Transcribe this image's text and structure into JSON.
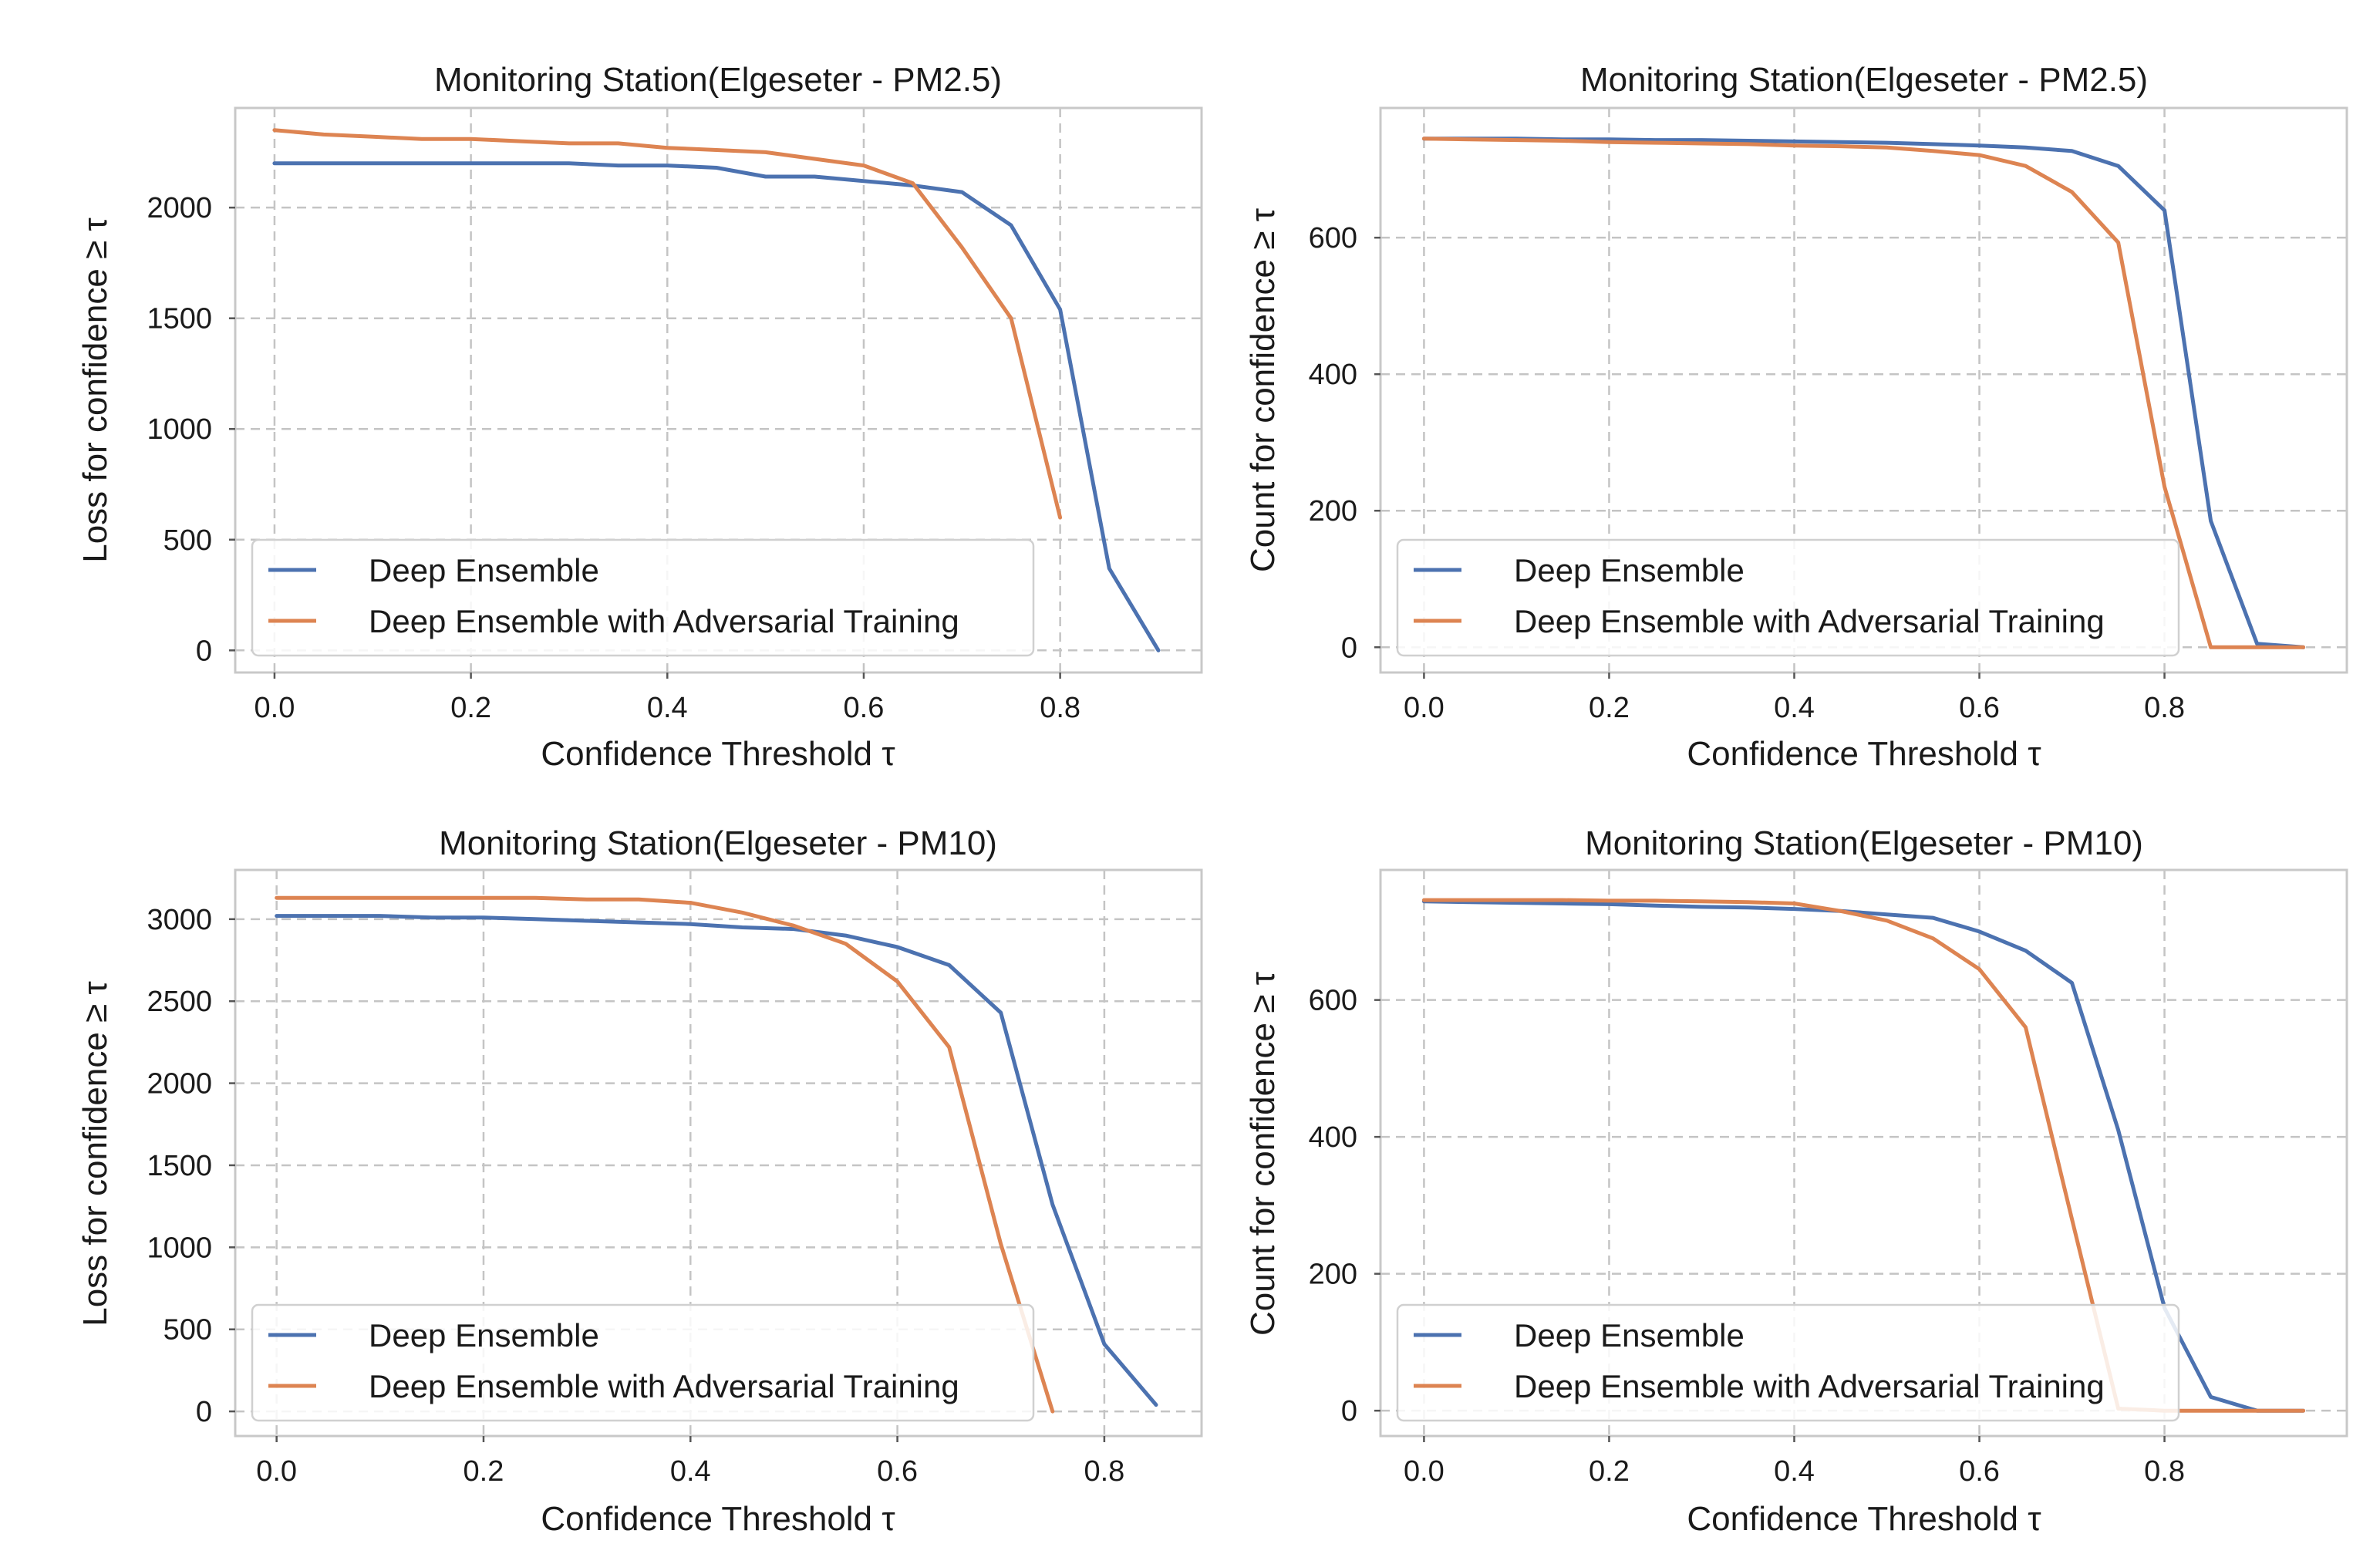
{
  "colors": {
    "deep_ensemble": "#4c72b0",
    "adversarial": "#dd8452"
  },
  "chart_data": [
    {
      "type": "line",
      "title": "Monitoring Station(Elgeseter - PM2.5)",
      "xlabel": "Confidence Threshold τ",
      "ylabel": "Loss for confidence ≥ τ",
      "xlim": [
        -0.04,
        0.944
      ],
      "ylim": [
        -100,
        2450
      ],
      "xticks": [
        "0.0",
        "0.2",
        "0.4",
        "0.6",
        "0.8"
      ],
      "xtick_values": [
        0.0,
        0.2,
        0.4,
        0.6,
        0.8
      ],
      "yticks": [
        "0",
        "500",
        "1000",
        "1500",
        "2000"
      ],
      "ytick_values": [
        0,
        500,
        1000,
        1500,
        2000
      ],
      "grid": true,
      "legend": "lower-left",
      "series": [
        {
          "name": "Deep Ensemble",
          "x": [
            0.0,
            0.05,
            0.1,
            0.15,
            0.2,
            0.25,
            0.3,
            0.35,
            0.4,
            0.45,
            0.5,
            0.55,
            0.6,
            0.65,
            0.7,
            0.75,
            0.8,
            0.85,
            0.9
          ],
          "y": [
            2200,
            2200,
            2200,
            2200,
            2200,
            2200,
            2200,
            2190,
            2190,
            2180,
            2140,
            2140,
            2120,
            2100,
            2070,
            1920,
            1540,
            370,
            0
          ]
        },
        {
          "name": "Deep Ensemble with Adversarial Training",
          "x": [
            0.0,
            0.05,
            0.1,
            0.15,
            0.2,
            0.25,
            0.3,
            0.35,
            0.4,
            0.45,
            0.5,
            0.55,
            0.6,
            0.65,
            0.7,
            0.75,
            0.8
          ],
          "y": [
            2350,
            2330,
            2320,
            2310,
            2310,
            2300,
            2290,
            2290,
            2270,
            2260,
            2250,
            2220,
            2190,
            2110,
            1820,
            1500,
            600
          ]
        }
      ]
    },
    {
      "type": "line",
      "title": "Monitoring Station(Elgeseter - PM2.5)",
      "xlabel": "Confidence Threshold τ",
      "ylabel": "Count for confidence ≥ τ",
      "xlim": [
        -0.047,
        0.997
      ],
      "ylim": [
        -37,
        790
      ],
      "xticks": [
        "0.0",
        "0.2",
        "0.4",
        "0.6",
        "0.8"
      ],
      "xtick_values": [
        0.0,
        0.2,
        0.4,
        0.6,
        0.8
      ],
      "yticks": [
        "0",
        "200",
        "400",
        "600"
      ],
      "ytick_values": [
        0,
        200,
        400,
        600
      ],
      "grid": true,
      "legend": "lower-left",
      "series": [
        {
          "name": "Deep Ensemble",
          "x": [
            0.0,
            0.05,
            0.1,
            0.15,
            0.2,
            0.25,
            0.3,
            0.35,
            0.4,
            0.45,
            0.5,
            0.55,
            0.6,
            0.65,
            0.7,
            0.75,
            0.8,
            0.85,
            0.9,
            0.95
          ],
          "y": [
            745,
            745,
            745,
            744,
            744,
            743,
            743,
            742,
            741,
            740,
            739,
            737,
            735,
            732,
            727,
            705,
            640,
            185,
            5,
            0
          ]
        },
        {
          "name": "Deep Ensemble with Adversarial Training",
          "x": [
            0.0,
            0.05,
            0.1,
            0.15,
            0.2,
            0.25,
            0.3,
            0.35,
            0.4,
            0.45,
            0.5,
            0.55,
            0.6,
            0.65,
            0.7,
            0.75,
            0.8,
            0.85,
            0.9,
            0.95
          ],
          "y": [
            745,
            744,
            743,
            742,
            740,
            739,
            738,
            737,
            735,
            734,
            732,
            727,
            721,
            705,
            667,
            593,
            235,
            0,
            0,
            0
          ]
        }
      ]
    },
    {
      "type": "line",
      "title": "Monitoring Station(Elgeseter - PM10)",
      "xlabel": "Confidence Threshold τ",
      "ylabel": "Loss for confidence ≥ τ",
      "xlim": [
        -0.04,
        0.894
      ],
      "ylim": [
        -150,
        3300
      ],
      "xticks": [
        "0.0",
        "0.2",
        "0.4",
        "0.6",
        "0.8"
      ],
      "xtick_values": [
        0.0,
        0.2,
        0.4,
        0.6,
        0.8
      ],
      "yticks": [
        "0",
        "500",
        "1000",
        "1500",
        "2000",
        "2500",
        "3000"
      ],
      "ytick_values": [
        0,
        500,
        1000,
        1500,
        2000,
        2500,
        3000
      ],
      "grid": true,
      "legend": "lower-left",
      "series": [
        {
          "name": "Deep Ensemble",
          "x": [
            0.0,
            0.05,
            0.1,
            0.15,
            0.2,
            0.25,
            0.3,
            0.35,
            0.4,
            0.45,
            0.5,
            0.55,
            0.6,
            0.65,
            0.7,
            0.75,
            0.8,
            0.85
          ],
          "y": [
            3020,
            3020,
            3020,
            3010,
            3010,
            3000,
            2990,
            2980,
            2970,
            2950,
            2940,
            2900,
            2830,
            2720,
            2430,
            1260,
            410,
            40
          ]
        },
        {
          "name": "Deep Ensemble with Adversarial Training",
          "x": [
            0.0,
            0.05,
            0.1,
            0.15,
            0.2,
            0.25,
            0.3,
            0.35,
            0.4,
            0.45,
            0.5,
            0.55,
            0.6,
            0.65,
            0.7,
            0.75
          ],
          "y": [
            3130,
            3130,
            3130,
            3130,
            3130,
            3130,
            3120,
            3120,
            3100,
            3040,
            2960,
            2850,
            2620,
            2220,
            1020,
            0
          ]
        }
      ]
    },
    {
      "type": "line",
      "title": "Monitoring Station(Elgeseter - PM10)",
      "xlabel": "Confidence Threshold τ",
      "ylabel": "Count for confidence ≥ τ",
      "xlim": [
        -0.047,
        0.997
      ],
      "ylim": [
        -37,
        790
      ],
      "xticks": [
        "0.0",
        "0.2",
        "0.4",
        "0.6",
        "0.8"
      ],
      "xtick_values": [
        0.0,
        0.2,
        0.4,
        0.6,
        0.8
      ],
      "yticks": [
        "0",
        "200",
        "400",
        "600"
      ],
      "ytick_values": [
        0,
        200,
        400,
        600
      ],
      "grid": true,
      "legend": "lower-left",
      "series": [
        {
          "name": "Deep Ensemble",
          "x": [
            0.0,
            0.05,
            0.1,
            0.15,
            0.2,
            0.25,
            0.3,
            0.35,
            0.4,
            0.45,
            0.5,
            0.55,
            0.6,
            0.65,
            0.7,
            0.75,
            0.8,
            0.85,
            0.9,
            0.95
          ],
          "y": [
            744,
            743,
            742,
            741,
            740,
            738,
            736,
            735,
            733,
            730,
            725,
            720,
            700,
            672,
            625,
            410,
            150,
            20,
            0,
            0
          ]
        },
        {
          "name": "Deep Ensemble with Adversarial Training",
          "x": [
            0.0,
            0.05,
            0.1,
            0.15,
            0.2,
            0.25,
            0.3,
            0.35,
            0.4,
            0.45,
            0.5,
            0.55,
            0.6,
            0.65,
            0.7,
            0.75,
            0.8,
            0.85,
            0.9,
            0.95
          ],
          "y": [
            746,
            746,
            746,
            746,
            745,
            745,
            744,
            743,
            741,
            730,
            716,
            690,
            645,
            560,
            280,
            3,
            0,
            0,
            0,
            0
          ]
        }
      ]
    }
  ]
}
